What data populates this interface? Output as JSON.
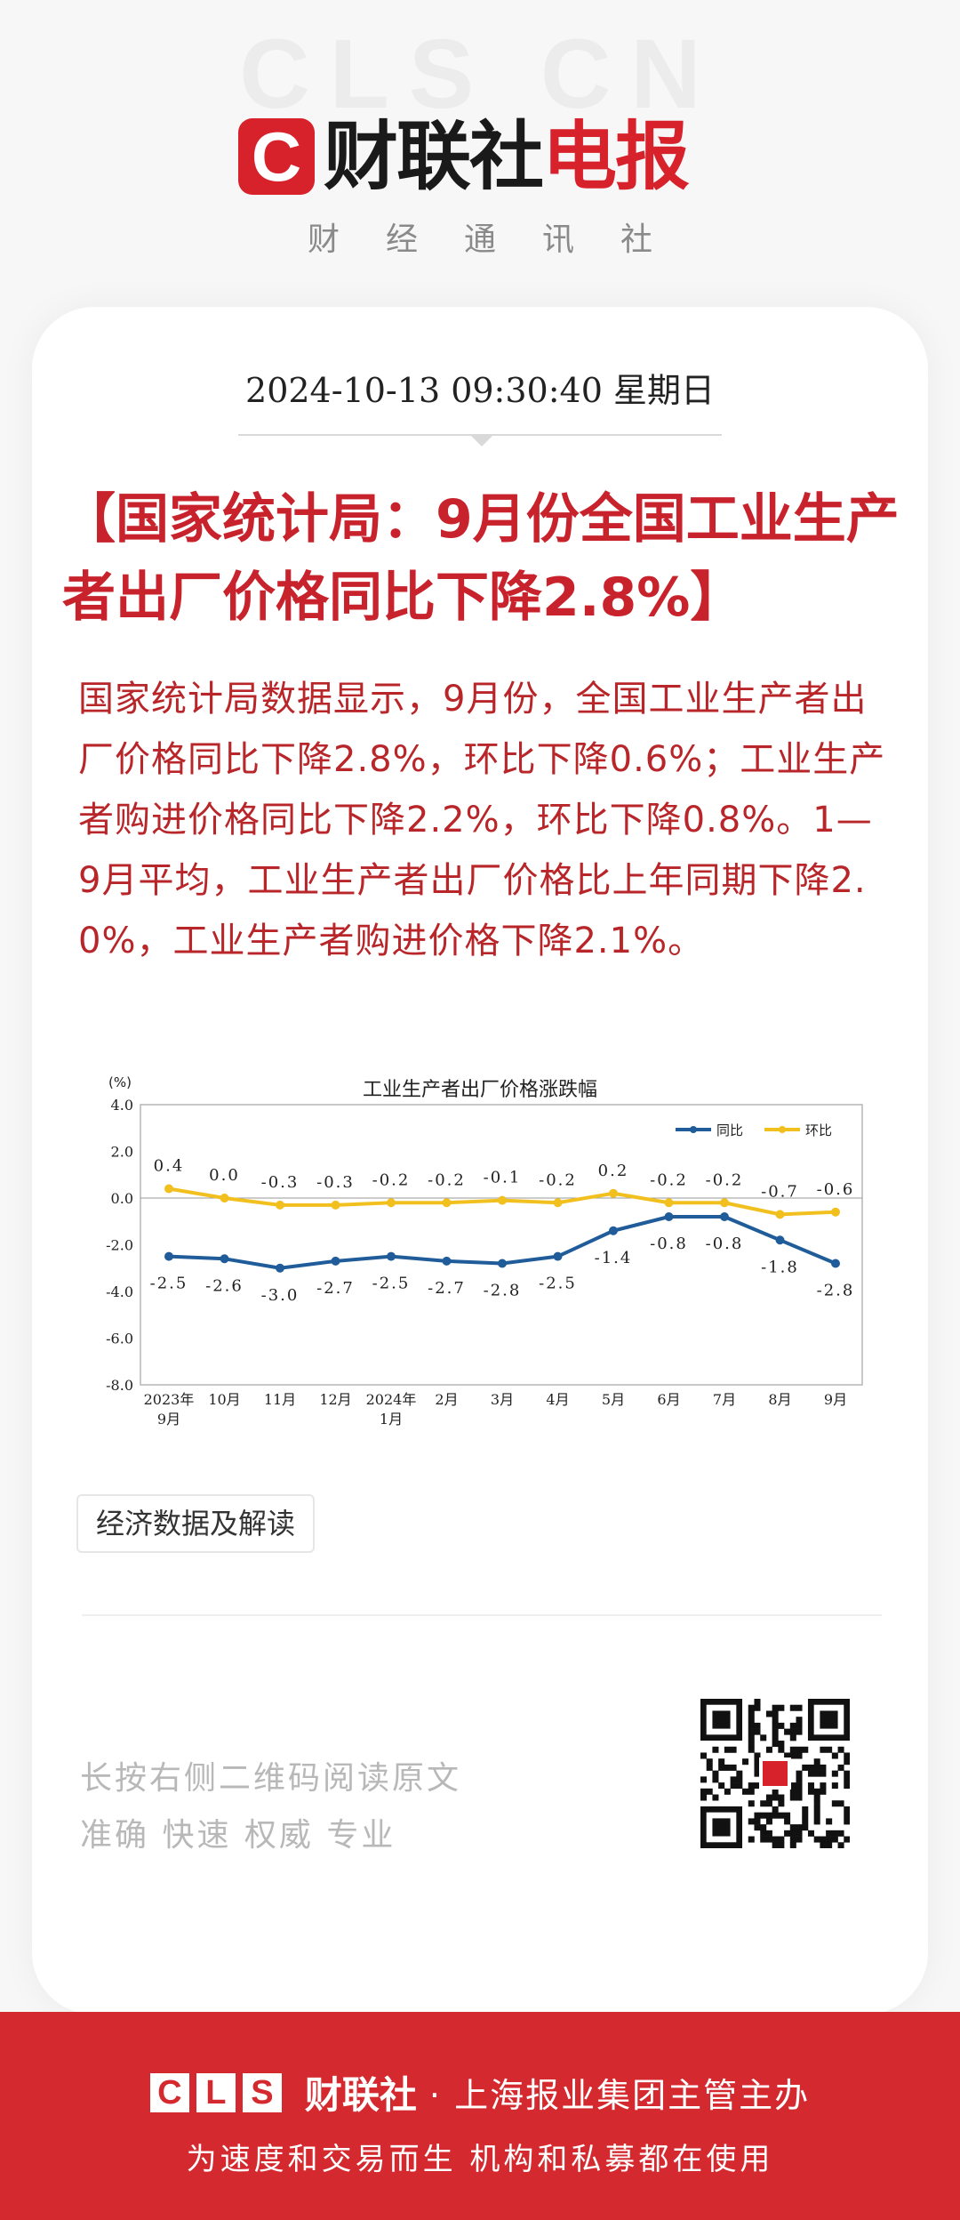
{
  "watermark": "CLS CN",
  "brand": {
    "mark_letter": "C",
    "name_black": "财联社",
    "name_red": "电报",
    "subtitle": "财经通讯社"
  },
  "article": {
    "datetime": "2024-10-13 09:30:40 星期日",
    "headline": "【国家统计局：9月份全国工业生产者出厂价格同比下降2.8%】",
    "body": "国家统计局数据显示，9月份，全国工业生产者出厂价格同比下降2.8%，环比下降0.6%；工业生产者购进价格同比下降2.2%，环比下降0.8%。1—9月平均，工业生产者出厂价格比上年同期下降2.0%，工业生产者购进价格下降2.1%。",
    "tag": "经济数据及解读"
  },
  "chart_data": {
    "type": "line",
    "title": "工业生产者出厂价格涨跌幅",
    "unit_label": "(%)",
    "categories": [
      [
        "2023年",
        "9月"
      ],
      [
        "10月"
      ],
      [
        "11月"
      ],
      [
        "12月"
      ],
      [
        "2024年",
        "1月"
      ],
      [
        "2月"
      ],
      [
        "3月"
      ],
      [
        "4月"
      ],
      [
        "5月"
      ],
      [
        "6月"
      ],
      [
        "7月"
      ],
      [
        "8月"
      ],
      [
        "9月"
      ]
    ],
    "series": [
      {
        "name": "同比",
        "color": "#1f5c99",
        "values": [
          -2.5,
          -2.6,
          -3.0,
          -2.7,
          -2.5,
          -2.7,
          -2.8,
          -2.5,
          -1.4,
          -0.8,
          -0.8,
          -1.8,
          -2.8
        ]
      },
      {
        "name": "环比",
        "color": "#f2c01e",
        "values": [
          0.4,
          0.0,
          -0.3,
          -0.3,
          -0.2,
          -0.2,
          -0.1,
          -0.2,
          0.2,
          -0.2,
          -0.2,
          -0.7,
          -0.6
        ]
      }
    ],
    "ylim": [
      -8.0,
      4.0
    ],
    "yticks": [
      "4.0",
      "2.0",
      "0.0",
      "-2.0",
      "-4.0",
      "-6.0",
      "-8.0"
    ],
    "legend_position": "top-right",
    "grid": false
  },
  "footer": {
    "hint": "长按右侧二维码阅读原文",
    "slogan": "准确 快速 权威 专业",
    "cls_letters": [
      "C",
      "L",
      "S"
    ],
    "brand": "财联社",
    "org": "· 上海报业集团主管主办",
    "tagline": "为速度和交易而生 机构和私募都在使用"
  }
}
